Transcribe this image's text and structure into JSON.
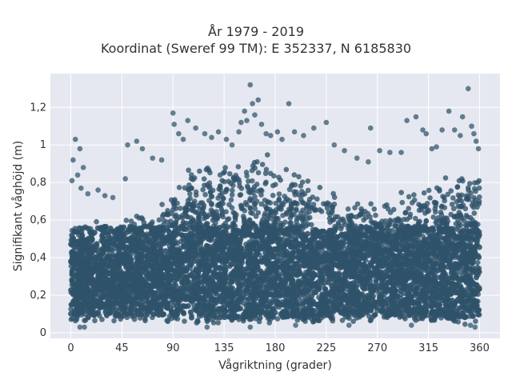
{
  "chart_data": {
    "type": "scatter",
    "title_lines": [
      "År 1979 - 2019",
      "Koordinat (Sweref 99 TM): E 352337, N 6185830"
    ],
    "xlabel": "Vågriktning (grader)",
    "ylabel": "Signifikant våghöjd (m)",
    "xlim": [
      -18,
      378
    ],
    "ylim": [
      -0.03,
      1.38
    ],
    "xticks": [
      0,
      45,
      90,
      135,
      180,
      225,
      270,
      315,
      360
    ],
    "xtick_labels": [
      "0",
      "45",
      "90",
      "135",
      "180",
      "225",
      "270",
      "315",
      "360"
    ],
    "yticks": [
      0,
      0.2,
      0.4,
      0.6,
      0.8,
      1.0,
      1.2
    ],
    "ytick_labels": [
      "0",
      "0,2",
      "0,4",
      "0,6",
      "0,8",
      "1",
      "1,2"
    ],
    "grid": true,
    "marker_color": "#2f5269",
    "plot_background": "#e5e8f0",
    "envelope": {
      "direction": [
        0,
        15,
        30,
        45,
        60,
        75,
        90,
        105,
        120,
        135,
        150,
        165,
        180,
        195,
        210,
        225,
        240,
        255,
        270,
        285,
        300,
        315,
        330,
        345,
        360
      ],
      "max_height": [
        0.6,
        0.6,
        0.6,
        0.6,
        0.66,
        0.7,
        0.76,
        0.9,
        0.95,
        0.95,
        0.96,
        0.98,
        0.96,
        0.9,
        0.85,
        0.78,
        0.72,
        0.72,
        0.74,
        0.76,
        0.78,
        0.82,
        0.86,
        0.9,
        0.88
      ],
      "min_height": [
        0.06,
        0.06,
        0.06,
        0.06,
        0.06,
        0.06,
        0.05,
        0.05,
        0.05,
        0.05,
        0.04,
        0.04,
        0.05,
        0.05,
        0.05,
        0.06,
        0.06,
        0.06,
        0.06,
        0.06,
        0.06,
        0.05,
        0.05,
        0.04,
        0.04
      ]
    },
    "points": [
      [
        4,
        1.03
      ],
      [
        8,
        0.98
      ],
      [
        2,
        0.92
      ],
      [
        11,
        0.88
      ],
      [
        6,
        0.84
      ],
      [
        1,
        0.81
      ],
      [
        9,
        0.77
      ],
      [
        15,
        0.74
      ],
      [
        24,
        0.76
      ],
      [
        30,
        0.73
      ],
      [
        37,
        0.72
      ],
      [
        48,
        0.82
      ],
      [
        50,
        1.0
      ],
      [
        58,
        1.02
      ],
      [
        63,
        0.98
      ],
      [
        72,
        0.93
      ],
      [
        80,
        0.92
      ],
      [
        90,
        1.17
      ],
      [
        91,
        1.11
      ],
      [
        95,
        1.06
      ],
      [
        99,
        1.03
      ],
      [
        103,
        1.13
      ],
      [
        110,
        1.09
      ],
      [
        118,
        1.06
      ],
      [
        124,
        1.04
      ],
      [
        130,
        1.07
      ],
      [
        137,
        1.03
      ],
      [
        142,
        1.0
      ],
      [
        148,
        1.07
      ],
      [
        150,
        1.12
      ],
      [
        153,
        1.18
      ],
      [
        155,
        1.13
      ],
      [
        158,
        1.32
      ],
      [
        160,
        1.22
      ],
      [
        162,
        1.16
      ],
      [
        165,
        1.24
      ],
      [
        168,
        1.11
      ],
      [
        172,
        1.06
      ],
      [
        176,
        1.05
      ],
      [
        182,
        1.07
      ],
      [
        186,
        1.03
      ],
      [
        192,
        1.22
      ],
      [
        197,
        1.07
      ],
      [
        205,
        1.05
      ],
      [
        214,
        1.09
      ],
      [
        225,
        1.12
      ],
      [
        232,
        1.0
      ],
      [
        241,
        0.97
      ],
      [
        252,
        0.93
      ],
      [
        262,
        0.91
      ],
      [
        264,
        1.09
      ],
      [
        272,
        0.97
      ],
      [
        281,
        0.96
      ],
      [
        291,
        0.96
      ],
      [
        296,
        1.13
      ],
      [
        304,
        1.15
      ],
      [
        310,
        1.08
      ],
      [
        313,
        1.06
      ],
      [
        318,
        0.98
      ],
      [
        322,
        0.99
      ],
      [
        327,
        1.08
      ],
      [
        333,
        1.18
      ],
      [
        338,
        1.08
      ],
      [
        343,
        1.05
      ],
      [
        345,
        1.15
      ],
      [
        350,
        1.3
      ],
      [
        353,
        1.1
      ],
      [
        355,
        1.06
      ],
      [
        357,
        1.02
      ],
      [
        359,
        0.98
      ],
      [
        352,
        0.04
      ],
      [
        356,
        0.03
      ],
      [
        8,
        0.03
      ],
      [
        12,
        0.03
      ],
      [
        158,
        0.03
      ],
      [
        120,
        0.03
      ],
      [
        300,
        0.04
      ],
      [
        245,
        0.04
      ],
      [
        198,
        0.04
      ]
    ]
  }
}
